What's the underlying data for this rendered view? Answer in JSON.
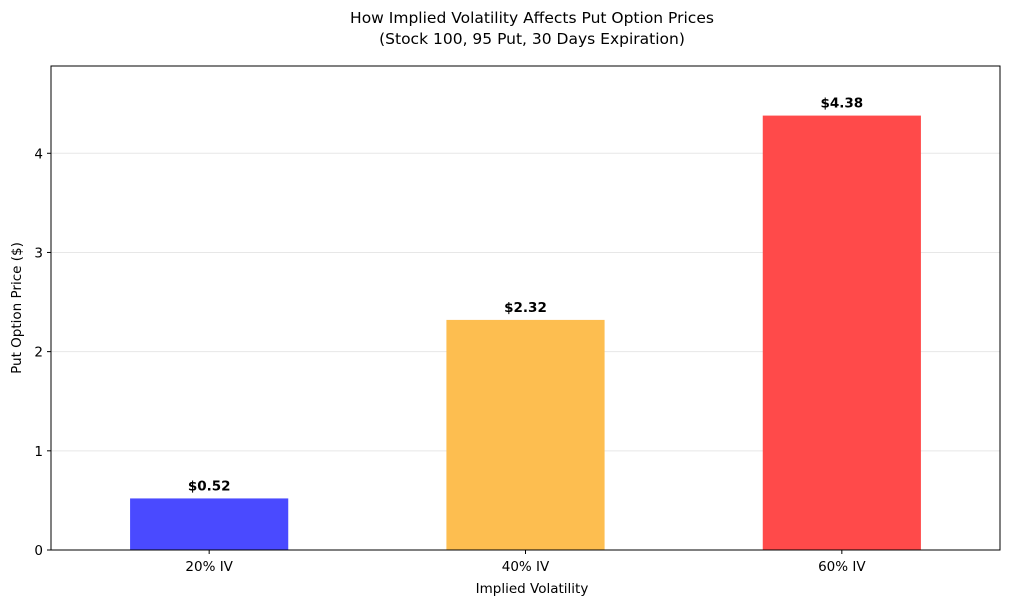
{
  "chart_data": {
    "type": "bar",
    "title": "How Implied Volatility Affects Put Option Prices",
    "subtitle": "(Stock 100, 95 Put, 30 Days Expiration)",
    "xlabel": "Implied Volatility",
    "ylabel": "Put Option Price ($)",
    "categories": [
      "20% IV",
      "40% IV",
      "60% IV"
    ],
    "values": [
      0.52,
      2.32,
      4.38
    ],
    "data_labels": [
      "$0.52",
      "$2.32",
      "$4.38"
    ],
    "colors": [
      "#4a4aff",
      "#fdbe50",
      "#ff4a4a"
    ],
    "ylim": [
      0,
      4.88
    ],
    "yticks": [
      0,
      1,
      2,
      3,
      4
    ],
    "grid": "y",
    "legend": "none"
  }
}
